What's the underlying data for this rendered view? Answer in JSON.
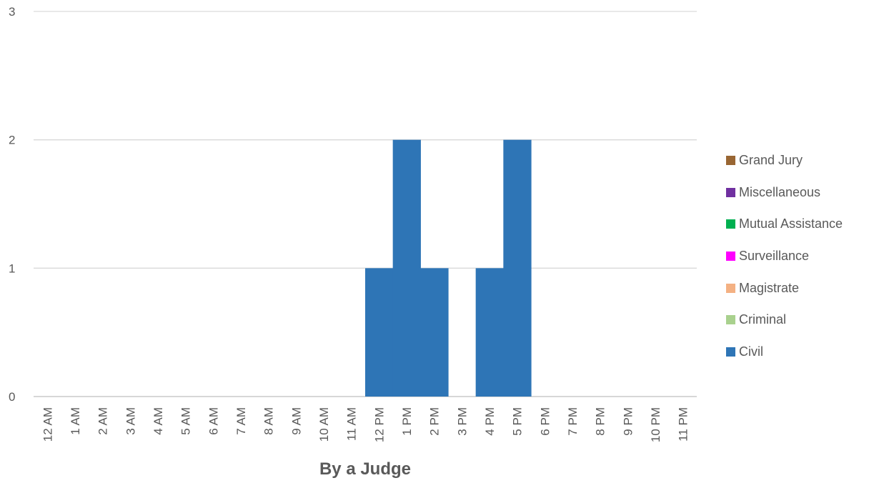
{
  "chart_data": {
    "type": "bar",
    "stacked": true,
    "title": "",
    "xlabel": "By a Judge",
    "ylabel": "",
    "ylim": [
      0,
      3
    ],
    "yticks": [
      0,
      1,
      2,
      3
    ],
    "grid": true,
    "legend_position": "right",
    "categories": [
      "12 AM",
      "1 AM",
      "2 AM",
      "3 AM",
      "4 AM",
      "5 AM",
      "6 AM",
      "7 AM",
      "8 AM",
      "9 AM",
      "10 AM",
      "11 AM",
      "12 PM",
      "1 PM",
      "2 PM",
      "3 PM",
      "4 PM",
      "5 PM",
      "6 PM",
      "7 PM",
      "8 PM",
      "9 PM",
      "10 PM",
      "11 PM"
    ],
    "series": [
      {
        "name": "Civil",
        "color": "#2E75B6",
        "values": [
          0,
          0,
          0,
          0,
          0,
          0,
          0,
          0,
          0,
          0,
          0,
          0,
          1,
          2,
          1,
          0,
          1,
          2,
          0,
          0,
          0,
          0,
          0,
          0
        ]
      },
      {
        "name": "Criminal",
        "color": "#A9D18E",
        "values": [
          0,
          0,
          0,
          0,
          0,
          0,
          0,
          0,
          0,
          0,
          0,
          0,
          0,
          0,
          0,
          0,
          0,
          0,
          0,
          0,
          0,
          0,
          0,
          0
        ]
      },
      {
        "name": "Magistrate",
        "color": "#F4B183",
        "values": [
          0,
          0,
          0,
          0,
          0,
          0,
          0,
          0,
          0,
          0,
          0,
          0,
          0,
          0,
          0,
          0,
          0,
          0,
          0,
          0,
          0,
          0,
          0,
          0
        ]
      },
      {
        "name": "Surveillance",
        "color": "#FF00FF",
        "values": [
          0,
          0,
          0,
          0,
          0,
          0,
          0,
          0,
          0,
          0,
          0,
          0,
          0,
          0,
          0,
          0,
          0,
          0,
          0,
          0,
          0,
          0,
          0,
          0
        ]
      },
      {
        "name": "Mutual Assistance",
        "color": "#00B050",
        "values": [
          0,
          0,
          0,
          0,
          0,
          0,
          0,
          0,
          0,
          0,
          0,
          0,
          0,
          0,
          0,
          0,
          0,
          0,
          0,
          0,
          0,
          0,
          0,
          0
        ]
      },
      {
        "name": "Miscellaneous",
        "color": "#7030A0",
        "values": [
          0,
          0,
          0,
          0,
          0,
          0,
          0,
          0,
          0,
          0,
          0,
          0,
          0,
          0,
          0,
          0,
          0,
          0,
          0,
          0,
          0,
          0,
          0,
          0
        ]
      },
      {
        "name": "Grand Jury",
        "color": "#996633",
        "values": [
          0,
          0,
          0,
          0,
          0,
          0,
          0,
          0,
          0,
          0,
          0,
          0,
          0,
          0,
          0,
          0,
          0,
          0,
          0,
          0,
          0,
          0,
          0,
          0
        ]
      }
    ],
    "legend_order": [
      "Grand Jury",
      "Miscellaneous",
      "Mutual Assistance",
      "Surveillance",
      "Magistrate",
      "Criminal",
      "Civil"
    ]
  }
}
